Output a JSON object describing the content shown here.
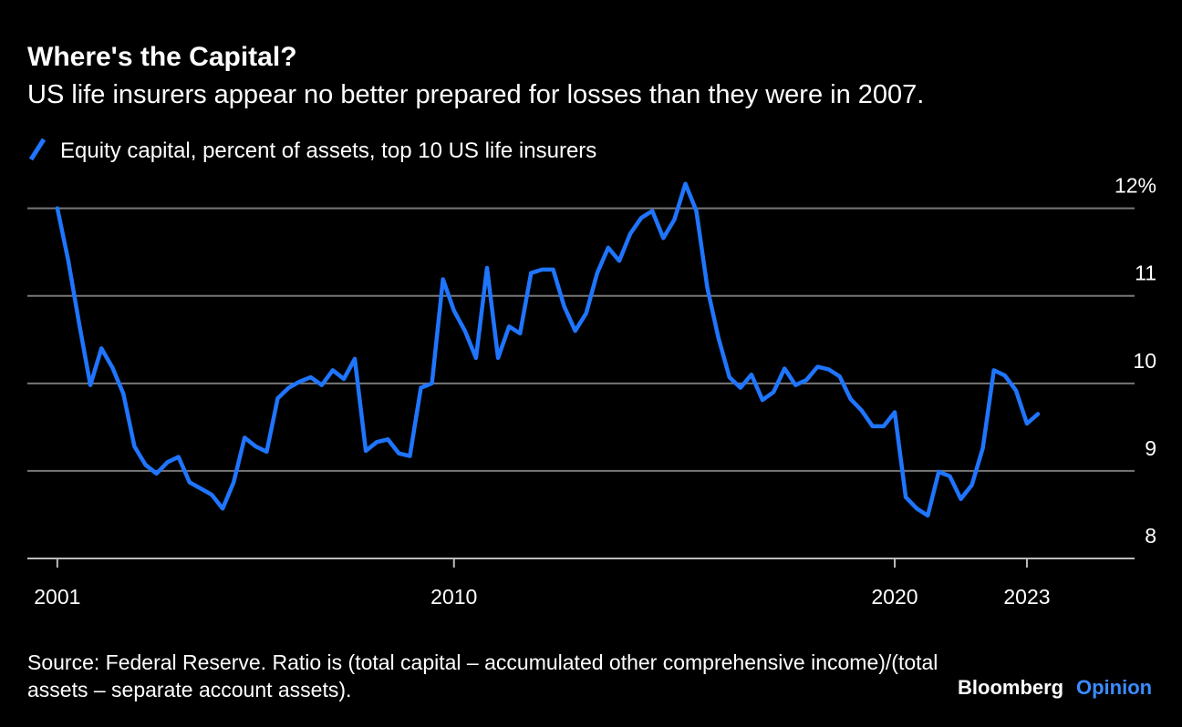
{
  "chart_data": {
    "type": "line",
    "title": "Where's the Capital?",
    "subtitle": "US life insurers appear no better prepared for losses than they were in 2007.",
    "series": [
      {
        "name": "Equity capital, percent of assets, top 10 US life insurers",
        "color": "#1f75fe",
        "values": [
          12.0,
          11.4,
          10.67,
          9.98,
          10.4,
          10.18,
          9.88,
          9.28,
          9.07,
          8.97,
          9.1,
          9.16,
          8.87,
          8.8,
          8.73,
          8.57,
          8.87,
          9.38,
          9.28,
          9.22,
          9.83,
          9.95,
          10.02,
          10.07,
          9.98,
          10.15,
          10.05,
          10.28,
          9.23,
          9.33,
          9.36,
          9.2,
          9.17,
          9.95,
          10.0,
          11.19,
          10.83,
          10.6,
          10.29,
          11.32,
          10.29,
          10.65,
          10.57,
          11.26,
          11.3,
          11.3,
          10.88,
          10.6,
          10.8,
          11.26,
          11.55,
          11.4,
          11.71,
          11.89,
          11.97,
          11.66,
          11.87,
          12.28,
          11.97,
          11.09,
          10.52,
          10.07,
          9.95,
          10.1,
          9.81,
          9.9,
          10.17,
          9.98,
          10.04,
          10.19,
          10.16,
          10.08,
          9.82,
          9.69,
          9.51,
          9.51,
          9.67,
          8.7,
          8.57,
          8.49,
          8.99,
          8.94,
          8.68,
          8.84,
          9.26,
          10.15,
          10.09,
          9.92,
          9.54,
          9.65
        ]
      }
    ],
    "x": [
      2001,
      2001.25,
      2001.5,
      2001.75,
      2002,
      2002.25,
      2002.5,
      2002.75,
      2003,
      2003.25,
      2003.5,
      2003.75,
      2004,
      2004.25,
      2004.5,
      2004.75,
      2005,
      2005.25,
      2005.5,
      2005.75,
      2006,
      2006.25,
      2006.5,
      2006.75,
      2007,
      2007.25,
      2007.5,
      2007.75,
      2008,
      2008.25,
      2008.5,
      2008.75,
      2009,
      2009.25,
      2009.5,
      2009.75,
      2010,
      2010.25,
      2010.5,
      2010.75,
      2011,
      2011.25,
      2011.5,
      2011.75,
      2012,
      2012.25,
      2012.5,
      2012.75,
      2013,
      2013.25,
      2013.5,
      2013.75,
      2014,
      2014.25,
      2014.5,
      2014.75,
      2015,
      2015.25,
      2015.5,
      2015.75,
      2016,
      2016.25,
      2016.5,
      2016.75,
      2017,
      2017.25,
      2017.5,
      2017.75,
      2018,
      2018.25,
      2018.5,
      2018.75,
      2019,
      2019.25,
      2019.5,
      2019.75,
      2020,
      2020.25,
      2020.5,
      2020.75,
      2021,
      2021.25,
      2021.5,
      2021.75,
      2022,
      2022.25,
      2022.5,
      2022.75,
      2023,
      2023.25
    ],
    "xlim": [
      2000.32,
      2025.36
    ],
    "xticks": [
      2001,
      2010,
      2020,
      2023
    ],
    "ylim": [
      8,
      12.35
    ],
    "yticks": [
      8,
      9,
      10,
      11,
      {
        "value": 12,
        "label": "12%"
      }
    ],
    "grid": true,
    "source": "Source: Federal Reserve. Ratio is (total capital – accumulated other comprehensive income)/(total assets – separate account assets).",
    "branding": [
      "Bloomberg",
      "Opinion"
    ]
  }
}
